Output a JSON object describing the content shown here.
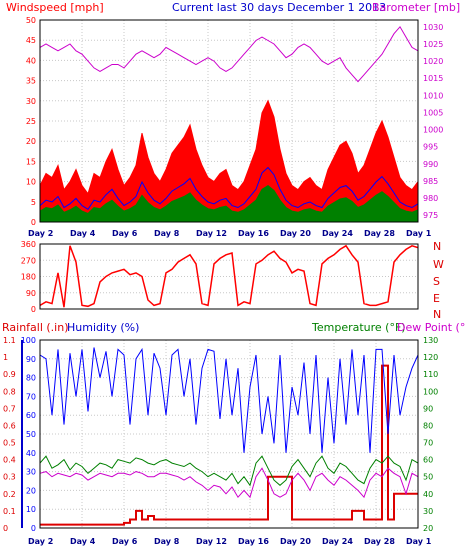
{
  "header": {
    "windspeed_label": "Windspeed [mph]",
    "title": "Current last 30 days December 1 2013",
    "barometer_label": "Barometer [mb]"
  },
  "wind_dir_labels": [
    "N",
    "W",
    "S",
    "E",
    "N"
  ],
  "lower": {
    "rainfall_label": "Rainfall (.in)",
    "humidity_label": "Humidity (%)",
    "temperature_label": "Temperature (°F)",
    "dewpoint_label": "Dew Point (°F)"
  },
  "x_ticks": [
    "Day 2",
    "Day 4",
    "Day 6",
    "Day 8",
    "Day 12",
    "Day 16",
    "Day 20",
    "Day 24",
    "Day 28",
    "Day 1"
  ],
  "colors": {
    "windspeed": "#ff0000",
    "windavg": "#0000ff",
    "windlow": "#008000",
    "barometer": "#cc00cc",
    "winddir": "#ff0000",
    "rain": "#dd0000",
    "humidity": "#0000ff",
    "temperature": "#008000",
    "dewpoint": "#cc00cc",
    "title": "#0000cc"
  },
  "chart_data": [
    {
      "type": "area",
      "name": "wind-barometer",
      "x_labels": [
        "Day 2",
        "Day 4",
        "Day 6",
        "Day 8",
        "Day 12",
        "Day 16",
        "Day 20",
        "Day 24",
        "Day 28",
        "Day 1"
      ],
      "y_left_ticks": [
        0,
        5,
        10,
        15,
        20,
        25,
        30,
        35,
        40,
        45,
        50
      ],
      "y_right_ticks": [
        975,
        980,
        985,
        990,
        995,
        1000,
        1005,
        1010,
        1015,
        1020,
        1025,
        1030
      ],
      "ylim_left": [
        0,
        50
      ],
      "ylim_right": [
        973,
        1032
      ],
      "series": [
        {
          "name": "Windspeed [mph]",
          "axis": "left",
          "values": [
            9,
            12,
            11,
            14,
            8,
            10,
            13,
            9,
            7,
            12,
            11,
            15,
            18,
            13,
            9,
            11,
            14,
            22,
            16,
            12,
            10,
            13,
            17,
            19,
            21,
            24,
            18,
            14,
            11,
            10,
            12,
            13,
            9,
            8,
            10,
            14,
            18,
            27,
            30,
            26,
            18,
            12,
            9,
            8,
            10,
            11,
            9,
            8,
            13,
            16,
            19,
            20,
            17,
            12,
            14,
            18,
            22,
            25,
            21,
            16,
            11,
            9,
            8,
            10
          ]
        },
        {
          "name": "Barometer [mb]",
          "axis": "right",
          "values": [
            1024,
            1025,
            1024,
            1023,
            1024,
            1025,
            1023,
            1022,
            1020,
            1018,
            1017,
            1018,
            1019,
            1019,
            1018,
            1020,
            1022,
            1023,
            1022,
            1021,
            1022,
            1024,
            1023,
            1022,
            1021,
            1020,
            1019,
            1020,
            1021,
            1020,
            1018,
            1017,
            1018,
            1020,
            1022,
            1024,
            1026,
            1027,
            1026,
            1025,
            1023,
            1021,
            1022,
            1024,
            1025,
            1024,
            1022,
            1020,
            1019,
            1020,
            1021,
            1018,
            1016,
            1014,
            1016,
            1018,
            1020,
            1022,
            1025,
            1028,
            1030,
            1027,
            1024,
            1023
          ]
        }
      ]
    },
    {
      "type": "scatter",
      "name": "wind-direction",
      "y_ticks": [
        0,
        90,
        180,
        270,
        360
      ],
      "ylim": [
        0,
        360
      ],
      "x_labels": [
        "Day 2",
        "Day 4",
        "Day 6",
        "Day 8",
        "Day 12",
        "Day 16",
        "Day 20",
        "Day 24",
        "Day 28",
        "Day 1"
      ],
      "series": [
        {
          "name": "Wind direction",
          "values": [
            20,
            40,
            30,
            200,
            10,
            350,
            260,
            20,
            15,
            30,
            150,
            180,
            200,
            210,
            220,
            190,
            200,
            180,
            50,
            20,
            30,
            200,
            220,
            260,
            280,
            300,
            250,
            30,
            20,
            250,
            280,
            300,
            310,
            20,
            40,
            30,
            250,
            270,
            300,
            320,
            280,
            260,
            200,
            220,
            210,
            30,
            20,
            250,
            280,
            300,
            330,
            350,
            300,
            260,
            30,
            20,
            20,
            30,
            40,
            260,
            300,
            330,
            350,
            340
          ]
        }
      ]
    },
    {
      "type": "line",
      "name": "rain-humidity-temp",
      "x_labels": [
        "Day 2",
        "Day 4",
        "Day 6",
        "Day 8",
        "Day 12",
        "Day 16",
        "Day 20",
        "Day 24",
        "Day 28",
        "Day 1"
      ],
      "y_left_ticks": [
        0,
        10,
        20,
        30,
        40,
        50,
        60,
        70,
        80,
        90,
        100
      ],
      "y_left_ticks_rain": [
        0,
        0.1,
        0.2,
        0.3,
        0.4,
        0.5,
        0.6,
        0.7,
        0.8,
        0.9,
        1,
        1.1
      ],
      "y_right_ticks": [
        20,
        30,
        40,
        50,
        60,
        70,
        80,
        90,
        100,
        110,
        120,
        130
      ],
      "ylim_humidity": [
        0,
        100
      ],
      "ylim_rain": [
        0,
        1.1
      ],
      "ylim_temp": [
        20,
        130
      ],
      "series": [
        {
          "name": "Humidity (%)",
          "axis": "left",
          "values": [
            92,
            90,
            60,
            95,
            55,
            93,
            70,
            95,
            62,
            96,
            80,
            94,
            70,
            95,
            92,
            55,
            90,
            95,
            60,
            93,
            85,
            60,
            92,
            95,
            70,
            90,
            55,
            85,
            95,
            94,
            58,
            90,
            60,
            85,
            40,
            75,
            92,
            50,
            70,
            45,
            92,
            40,
            75,
            60,
            88,
            50,
            92,
            40,
            80,
            45,
            90,
            55,
            95,
            60,
            92,
            40,
            95,
            95,
            50,
            92,
            60,
            75,
            85,
            92
          ]
        },
        {
          "name": "Temperature (°F)",
          "axis": "right",
          "values": [
            58,
            62,
            55,
            57,
            60,
            54,
            58,
            56,
            52,
            55,
            58,
            57,
            55,
            60,
            59,
            58,
            61,
            60,
            58,
            57,
            59,
            60,
            58,
            57,
            56,
            58,
            55,
            53,
            50,
            52,
            50,
            48,
            52,
            46,
            50,
            45,
            58,
            62,
            55,
            48,
            45,
            48,
            56,
            60,
            55,
            50,
            58,
            62,
            55,
            52,
            58,
            56,
            52,
            48,
            46,
            55,
            60,
            58,
            62,
            58,
            56,
            48,
            60,
            58
          ]
        },
        {
          "name": "Dew Point (°F)",
          "axis": "right",
          "values": [
            52,
            53,
            50,
            52,
            51,
            50,
            52,
            51,
            48,
            50,
            52,
            51,
            50,
            52,
            52,
            51,
            53,
            52,
            50,
            50,
            52,
            52,
            51,
            50,
            48,
            50,
            47,
            45,
            42,
            45,
            44,
            40,
            44,
            38,
            42,
            38,
            50,
            55,
            48,
            40,
            38,
            40,
            48,
            52,
            48,
            42,
            50,
            52,
            48,
            45,
            50,
            48,
            45,
            42,
            38,
            48,
            52,
            50,
            55,
            52,
            50,
            40,
            52,
            50
          ]
        },
        {
          "name": "Rainfall (.in)",
          "axis": "left_rain",
          "values": [
            0.02,
            0.02,
            0.02,
            0.02,
            0.02,
            0.02,
            0.02,
            0.02,
            0.02,
            0.02,
            0.02,
            0.02,
            0.02,
            0.02,
            0.03,
            0.05,
            0.1,
            0.05,
            0.07,
            0.05,
            0.05,
            0.05,
            0.05,
            0.05,
            0.05,
            0.05,
            0.05,
            0.05,
            0.05,
            0.05,
            0.05,
            0.05,
            0.05,
            0.05,
            0.05,
            0.05,
            0.05,
            0.05,
            0.3,
            0.3,
            0.3,
            0.3,
            0.05,
            0.05,
            0.05,
            0.05,
            0.05,
            0.05,
            0.05,
            0.05,
            0.05,
            0.05,
            0.1,
            0.1,
            0.05,
            0.05,
            0.05,
            0.95,
            0.05,
            0.2,
            0.2,
            0.2,
            0.2,
            0.2
          ]
        }
      ]
    }
  ]
}
